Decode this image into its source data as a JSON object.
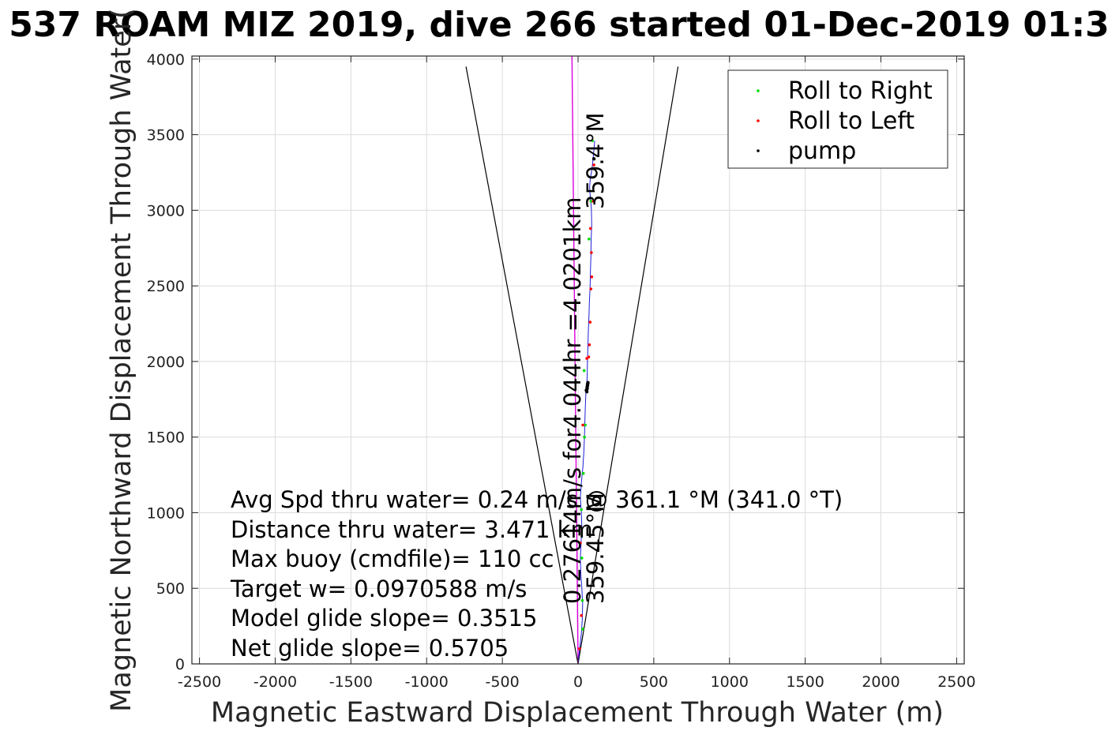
{
  "chart_data": {
    "type": "scatter",
    "title": "537 ROAM MIZ 2019, dive 266 started 01-Dec-2019 01:3",
    "xlabel": "Magnetic Eastward Displacement Through Water (m)",
    "ylabel": "Magnetic Northward Displacement Through Water(",
    "xlim": [
      -2550,
      2550
    ],
    "ylim": [
      0,
      4020
    ],
    "xticks": [
      -2500,
      -2000,
      -1500,
      -1000,
      -500,
      0,
      500,
      1000,
      1500,
      2000,
      2500
    ],
    "yticks": [
      0,
      500,
      1000,
      1500,
      2000,
      2500,
      3000,
      3500,
      4000
    ],
    "grid": true,
    "legend_position": "top-right",
    "colors": {
      "track": "#1f1fd6",
      "roll_right": "#00dd00",
      "roll_left": "#ff0000",
      "pump": "#000000",
      "depth_avg": "#dd00dd",
      "cone": "#000000"
    },
    "track": {
      "x": [
        0,
        10,
        22,
        28,
        30,
        25,
        18,
        15,
        20,
        25,
        22,
        15,
        22,
        32,
        38,
        42,
        45,
        48,
        52,
        58,
        60,
        62,
        65,
        68,
        72,
        75,
        80,
        82,
        85,
        86,
        90,
        88,
        85,
        80,
        76,
        80,
        88,
        95,
        100,
        105,
        110
      ],
      "y": [
        0,
        100,
        200,
        300,
        400,
        500,
        600,
        700,
        800,
        900,
        1000,
        1100,
        1200,
        1300,
        1400,
        1500,
        1600,
        1700,
        1800,
        1850,
        1900,
        2000,
        2100,
        2200,
        2300,
        2400,
        2500,
        2600,
        2700,
        2800,
        2900,
        3000,
        3050,
        3100,
        3150,
        3200,
        3250,
        3300,
        3350,
        3400,
        3460
      ]
    },
    "series": [
      {
        "name": "Roll to Right",
        "x": [
          30,
          28,
          25,
          22,
          35,
          42,
          48,
          40,
          72,
          85,
          95
        ],
        "y": [
          230,
          420,
          700,
          1020,
          1260,
          1500,
          1580,
          1940,
          2810,
          3060,
          3460
        ]
      },
      {
        "name": "Roll to Left",
        "x": [
          10,
          22,
          15,
          32,
          58,
          75,
          80,
          85,
          90,
          88,
          82,
          100,
          105,
          70
        ],
        "y": [
          100,
          320,
          800,
          1580,
          2020,
          2110,
          2260,
          2480,
          2560,
          2720,
          2880,
          3060,
          3300,
          2030
        ]
      },
      {
        "name": "pump",
        "x": [
          58,
          60,
          62,
          65,
          63,
          60,
          55,
          105
        ],
        "y": [
          1800,
          1820,
          1840,
          1860,
          1850,
          1830,
          1810,
          3340
        ]
      }
    ],
    "depth_avg_line": {
      "x": [
        0,
        -40
      ],
      "y": [
        0,
        4020
      ]
    },
    "cone_lines": [
      {
        "x": [
          0,
          -740
        ],
        "y": [
          0,
          3950
        ]
      },
      {
        "x": [
          0,
          660
        ],
        "y": [
          0,
          3950
        ]
      }
    ],
    "annotations": {
      "lines": [
        "Avg Spd thru water=  0.24 m/s @ 361.1 °M (341.0 °T)",
        "Distance thru water=  3.471 km",
        "Max buoy (cmdfile)= 110 cc",
        "Target w= 0.0970588 m/s",
        "Model glide slope= 0.3515",
        "Net glide slope= 0.5705"
      ],
      "heading_top": "359.4°M",
      "depth_avg_text": "0.27614m/s for4.044hr =4.0201km",
      "heading_bottom": "359.45°M"
    }
  }
}
